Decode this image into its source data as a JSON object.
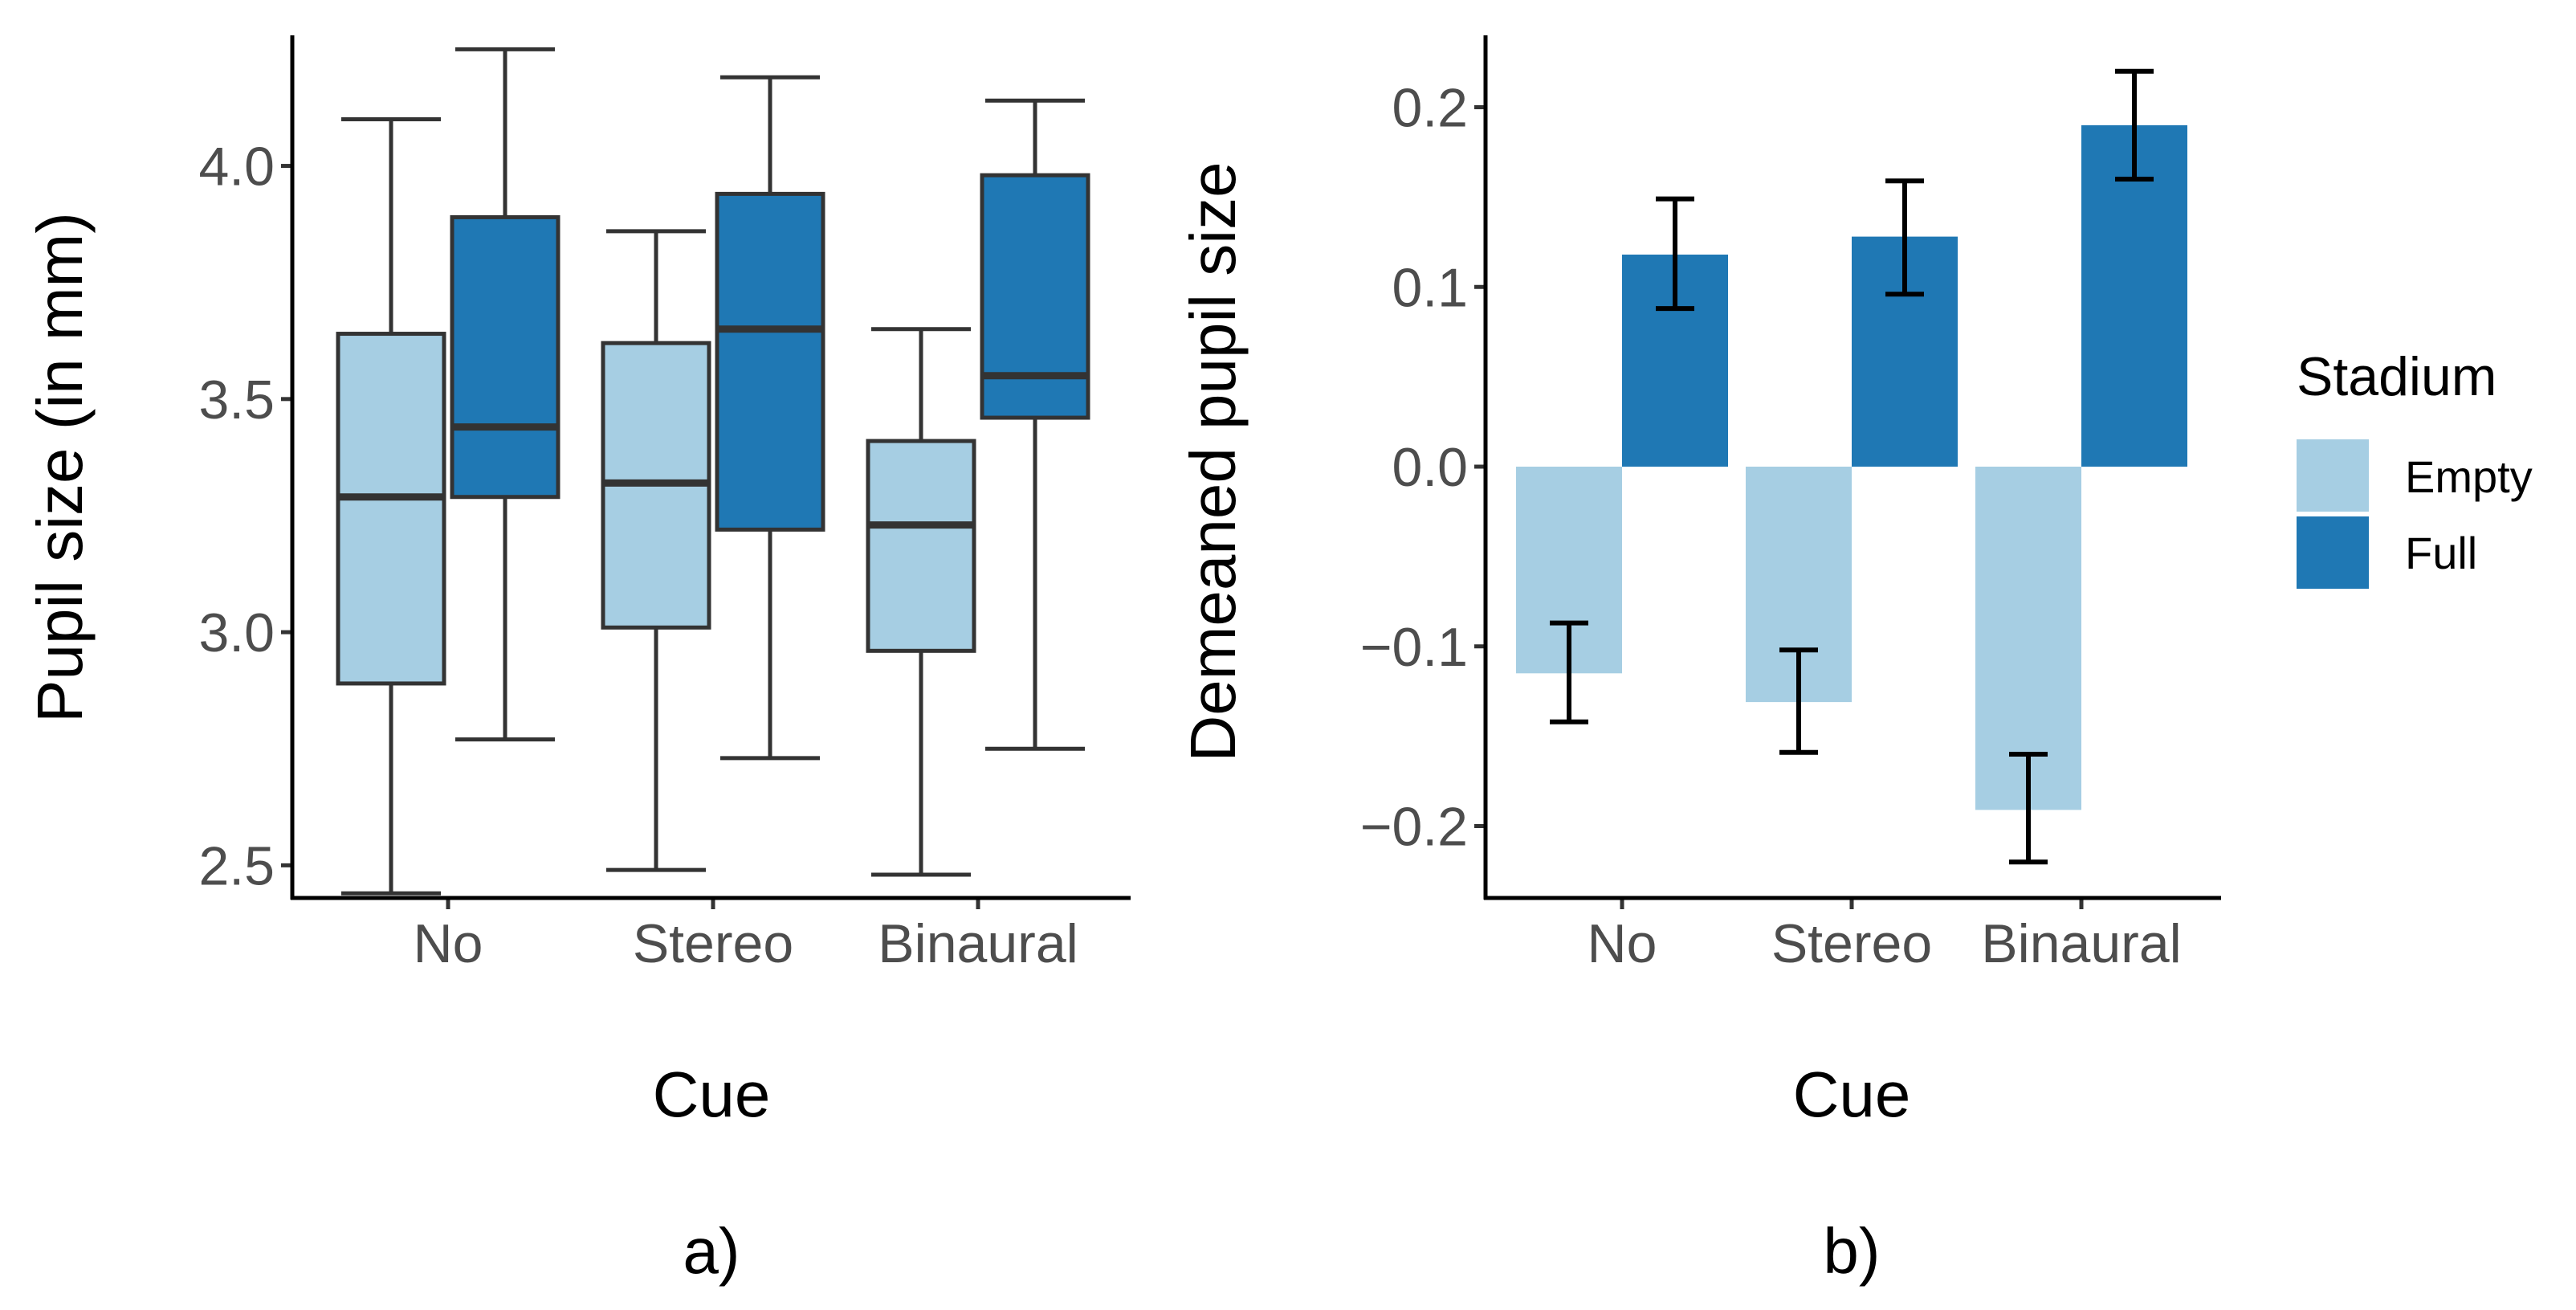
{
  "chart_data": [
    {
      "type": "box",
      "panel_label": "a)",
      "xlabel": "Cue",
      "ylabel": "Pupil size (in mm)",
      "ylim": [
        2.43,
        4.28
      ],
      "yticks": [
        2.5,
        3.0,
        3.5,
        4.0
      ],
      "ytick_labels": [
        "2.5",
        "3.0",
        "3.5",
        "4.0"
      ],
      "categories": [
        "No",
        "Stereo",
        "Binaural"
      ],
      "series": [
        {
          "name": "Empty",
          "color": "#a6cee3",
          "boxes": [
            {
              "whisker_low": 2.44,
              "q1": 2.89,
              "median": 3.29,
              "q3": 3.64,
              "whisker_high": 4.1
            },
            {
              "whisker_low": 2.49,
              "q1": 3.01,
              "median": 3.32,
              "q3": 3.62,
              "whisker_high": 3.86
            },
            {
              "whisker_low": 2.48,
              "q1": 2.96,
              "median": 3.23,
              "q3": 3.41,
              "whisker_high": 3.65
            }
          ]
        },
        {
          "name": "Full",
          "color": "#1f78b4",
          "boxes": [
            {
              "whisker_low": 2.77,
              "q1": 3.29,
              "median": 3.44,
              "q3": 3.89,
              "whisker_high": 4.25
            },
            {
              "whisker_low": 2.73,
              "q1": 3.22,
              "median": 3.65,
              "q3": 3.94,
              "whisker_high": 4.19
            },
            {
              "whisker_low": 2.75,
              "q1": 3.46,
              "median": 3.55,
              "q3": 3.98,
              "whisker_high": 4.14
            }
          ]
        }
      ]
    },
    {
      "type": "bar",
      "panel_label": "b)",
      "xlabel": "Cue",
      "ylabel": "Demeaned pupil size",
      "ylim": [
        -0.24,
        0.24
      ],
      "yticks": [
        -0.2,
        -0.1,
        0.0,
        0.1,
        0.2
      ],
      "ytick_labels": [
        "−0.2",
        "−0.1",
        "0.0",
        "0.1",
        "0.2"
      ],
      "categories": [
        "No",
        "Stereo",
        "Binaural"
      ],
      "series": [
        {
          "name": "Empty",
          "color": "#a6cee3",
          "values": [
            -0.115,
            -0.131,
            -0.191
          ],
          "error_low": [
            -0.142,
            -0.159,
            -0.22
          ],
          "error_high": [
            -0.087,
            -0.102,
            -0.16
          ]
        },
        {
          "name": "Full",
          "color": "#1f78b4",
          "values": [
            0.118,
            0.128,
            0.19
          ],
          "error_low": [
            0.088,
            0.096,
            0.16
          ],
          "error_high": [
            0.149,
            0.159,
            0.22
          ]
        }
      ]
    }
  ],
  "legend": {
    "title": "Stadium",
    "items": [
      {
        "label": "Empty",
        "color": "#a6cee3"
      },
      {
        "label": "Full",
        "color": "#1f78b4"
      }
    ]
  }
}
